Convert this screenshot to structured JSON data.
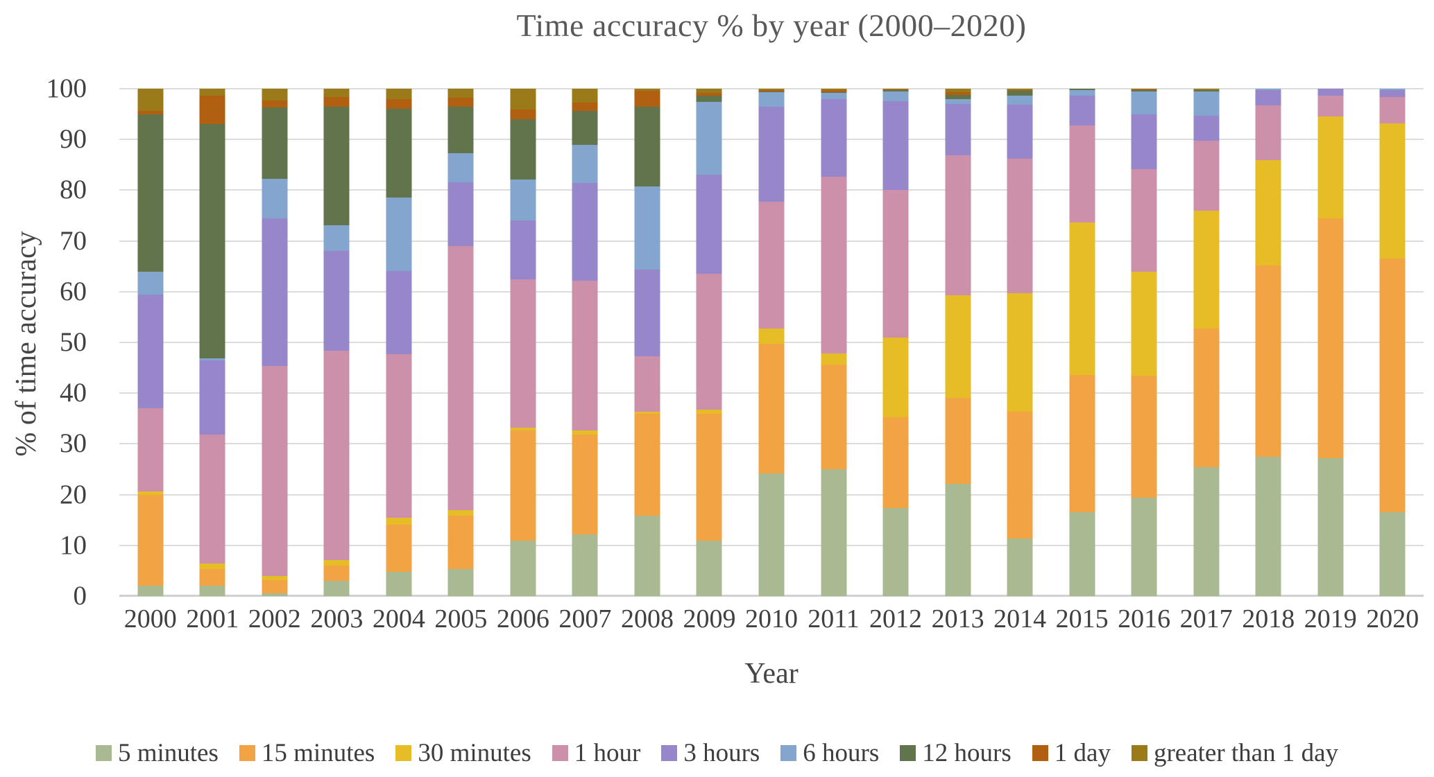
{
  "chart_data": {
    "type": "bar",
    "stacked": true,
    "title": "Time accuracy % by year (2000–2020)",
    "xlabel": "Year",
    "ylabel": "% of time accuracy",
    "ylim": [
      0,
      100
    ],
    "ytick_step": 10,
    "grid": "horizontal",
    "legend_position": "bottom",
    "categories": [
      "2000",
      "2001",
      "2002",
      "2003",
      "2004",
      "2005",
      "2006",
      "2007",
      "2008",
      "2009",
      "2010",
      "2011",
      "2012",
      "2013",
      "2014",
      "2015",
      "2016",
      "2017",
      "2018",
      "2019",
      "2020"
    ],
    "series": [
      {
        "name": "5 minutes",
        "color": "#a9ba92",
        "values": [
          2.0,
          2.0,
          0.6,
          3.0,
          4.8,
          5.3,
          10.9,
          12.1,
          15.9,
          10.9,
          24.2,
          25.0,
          17.4,
          22.1,
          11.4,
          16.6,
          19.4,
          25.4,
          27.5,
          27.2,
          16.6
        ]
      },
      {
        "name": "15 minutes",
        "color": "#f2a444",
        "values": [
          18.0,
          3.4,
          2.5,
          3.0,
          9.3,
          10.6,
          21.8,
          19.7,
          20.0,
          25.0,
          25.5,
          20.6,
          17.9,
          17.0,
          25.0,
          27.0,
          24.0,
          27.4,
          37.7,
          47.2,
          50.0
        ]
      },
      {
        "name": "30 minutes",
        "color": "#e6bd27",
        "values": [
          0.7,
          1.0,
          0.9,
          1.1,
          1.4,
          1.0,
          0.5,
          0.9,
          0.4,
          0.9,
          3.0,
          2.2,
          15.6,
          20.2,
          23.3,
          30.0,
          20.6,
          23.1,
          20.8,
          20.1,
          26.6
        ]
      },
      {
        "name": "1 hour",
        "color": "#cc90aa",
        "values": [
          16.3,
          25.5,
          41.3,
          41.3,
          32.2,
          52.1,
          29.2,
          29.4,
          11.0,
          26.7,
          25.1,
          34.8,
          29.2,
          27.6,
          26.5,
          19.2,
          20.2,
          13.8,
          10.7,
          4.1,
          5.1
        ]
      },
      {
        "name": "3 hours",
        "color": "#9786ca",
        "values": [
          22.5,
          14.5,
          29.2,
          19.7,
          16.4,
          12.6,
          11.6,
          19.3,
          17.1,
          19.5,
          18.6,
          15.3,
          17.4,
          10.1,
          10.7,
          5.9,
          10.8,
          5.0,
          3.0,
          1.4,
          1.4
        ]
      },
      {
        "name": "6 hours",
        "color": "#84a5ce",
        "values": [
          4.5,
          0.5,
          7.8,
          5.0,
          14.4,
          5.7,
          8.1,
          7.6,
          16.4,
          14.4,
          2.9,
          1.3,
          2.0,
          1.0,
          1.7,
          1.1,
          4.5,
          4.8,
          0.3,
          0.0,
          0.3
        ]
      },
      {
        "name": "12 hours",
        "color": "#62744b",
        "values": [
          31.0,
          46.1,
          14.0,
          23.3,
          17.6,
          9.1,
          11.9,
          6.6,
          15.6,
          1.2,
          0.2,
          0.1,
          0.3,
          0.8,
          1.0,
          0.2,
          0.2,
          0.2,
          0.0,
          0.0,
          0.0
        ]
      },
      {
        "name": "1 day",
        "color": "#b15f10",
        "values": [
          0.7,
          5.7,
          1.4,
          2.0,
          1.9,
          1.8,
          1.9,
          1.7,
          3.2,
          0.6,
          0.2,
          0.5,
          0.1,
          0.5,
          0.1,
          0.0,
          0.2,
          0.0,
          0.0,
          0.0,
          0.0
        ]
      },
      {
        "name": "greater than 1 day",
        "color": "#9b7a1a",
        "values": [
          4.3,
          1.3,
          2.3,
          1.6,
          2.0,
          1.8,
          4.1,
          2.7,
          0.4,
          0.8,
          0.3,
          0.2,
          0.1,
          0.7,
          0.3,
          0.0,
          0.1,
          0.3,
          0.0,
          0.0,
          0.0
        ]
      }
    ]
  }
}
